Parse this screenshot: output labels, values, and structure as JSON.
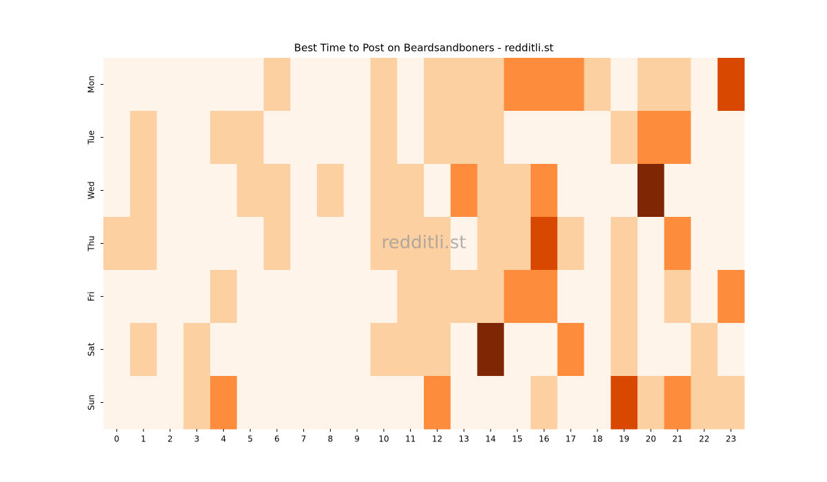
{
  "chart_data": {
    "type": "heatmap",
    "title": "Best Time to Post on Beardsandboners - redditli.st",
    "watermark": "redditli.st",
    "x": [
      0,
      1,
      2,
      3,
      4,
      5,
      6,
      7,
      8,
      9,
      10,
      11,
      12,
      13,
      14,
      15,
      16,
      17,
      18,
      19,
      20,
      21,
      22,
      23
    ],
    "y": [
      "Mon",
      "Tue",
      "Wed",
      "Thu",
      "Fri",
      "Sat",
      "Sun"
    ],
    "values": [
      [
        0,
        0,
        0,
        0,
        0,
        0,
        1,
        0,
        0,
        0,
        1,
        0,
        1,
        1,
        1,
        2,
        2,
        2,
        1,
        0,
        1,
        1,
        0,
        3
      ],
      [
        0,
        1,
        0,
        0,
        1,
        1,
        0,
        0,
        0,
        0,
        1,
        0,
        1,
        1,
        1,
        0,
        0,
        0,
        0,
        1,
        2,
        2,
        0,
        0
      ],
      [
        0,
        1,
        0,
        0,
        0,
        1,
        1,
        0,
        1,
        0,
        1,
        1,
        0,
        2,
        1,
        1,
        2,
        0,
        0,
        0,
        4,
        0,
        0,
        0
      ],
      [
        1,
        1,
        0,
        0,
        0,
        0,
        1,
        0,
        0,
        0,
        1,
        1,
        1,
        0,
        1,
        1,
        3,
        1,
        0,
        1,
        0,
        2,
        0,
        0
      ],
      [
        0,
        0,
        0,
        0,
        1,
        0,
        0,
        0,
        0,
        0,
        0,
        1,
        1,
        1,
        1,
        2,
        2,
        0,
        0,
        1,
        0,
        1,
        0,
        2
      ],
      [
        0,
        1,
        0,
        1,
        0,
        0,
        0,
        0,
        0,
        0,
        1,
        1,
        1,
        0,
        4,
        0,
        0,
        2,
        0,
        1,
        0,
        0,
        1,
        0
      ],
      [
        0,
        0,
        0,
        1,
        2,
        0,
        0,
        0,
        0,
        0,
        0,
        0,
        2,
        0,
        0,
        0,
        1,
        0,
        0,
        3,
        1,
        2,
        1,
        1
      ]
    ],
    "colors": [
      "#fef4e9",
      "#fdd0a2",
      "#fd8d3c",
      "#d94801",
      "#7f2704"
    ]
  }
}
